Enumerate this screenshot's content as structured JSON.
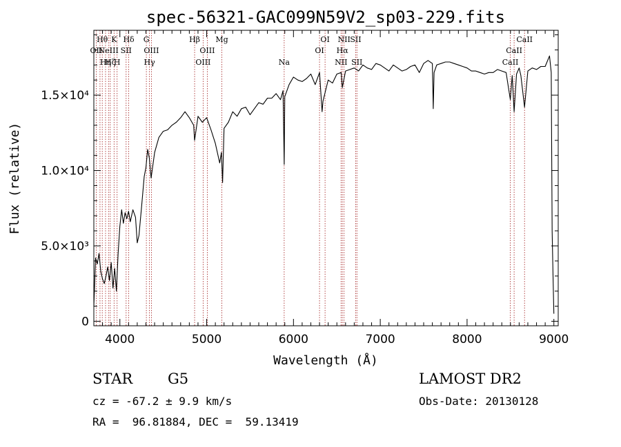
{
  "chart_data": {
    "type": "line",
    "title": "spec-56321-GAC099N59V2_sp03-229.fits",
    "xlabel": "Wavelength (Å)",
    "ylabel": "Flux (relative)",
    "xlim": [
      3700,
      9050
    ],
    "ylim": [
      -300,
      19300
    ],
    "x_ticks": [
      {
        "value": 4000,
        "label": "4000"
      },
      {
        "value": 5000,
        "label": "5000"
      },
      {
        "value": 6000,
        "label": "6000"
      },
      {
        "value": 7000,
        "label": "7000"
      },
      {
        "value": 8000,
        "label": "8000"
      },
      {
        "value": 9000,
        "label": "9000"
      }
    ],
    "y_ticks": [
      {
        "value": 0,
        "label": "0"
      },
      {
        "value": 5000,
        "label": "5.0×10³"
      },
      {
        "value": 10000,
        "label": "1.0×10⁴"
      },
      {
        "value": 15000,
        "label": "1.5×10⁴"
      }
    ],
    "series": [
      {
        "color": "#000000",
        "x": [
          3700,
          3720,
          3740,
          3760,
          3780,
          3800,
          3820,
          3840,
          3860,
          3880,
          3900,
          3920,
          3940,
          3960,
          3980,
          4000,
          4020,
          4040,
          4060,
          4080,
          4100,
          4120,
          4150,
          4180,
          4200,
          4220,
          4250,
          4280,
          4300,
          4320,
          4340,
          4360,
          4400,
          4450,
          4500,
          4550,
          4600,
          4650,
          4700,
          4750,
          4800,
          4850,
          4861,
          4900,
          4950,
          5000,
          5050,
          5100,
          5150,
          5170,
          5183,
          5200,
          5250,
          5300,
          5350,
          5400,
          5450,
          5500,
          5550,
          5600,
          5650,
          5700,
          5750,
          5800,
          5850,
          5880,
          5893,
          5900,
          5950,
          6000,
          6050,
          6100,
          6150,
          6200,
          6250,
          6300,
          6330,
          6340,
          6400,
          6450,
          6500,
          6550,
          6563,
          6600,
          6650,
          6700,
          6750,
          6800,
          6850,
          6900,
          6950,
          7000,
          7050,
          7100,
          7150,
          7200,
          7250,
          7300,
          7350,
          7400,
          7450,
          7500,
          7550,
          7600,
          7610,
          7620,
          7650,
          7700,
          7750,
          7800,
          7850,
          7900,
          7950,
          8000,
          8050,
          8100,
          8150,
          8200,
          8250,
          8300,
          8350,
          8400,
          8450,
          8498,
          8520,
          8542,
          8570,
          8600,
          8620,
          8662,
          8700,
          8750,
          8800,
          8850,
          8900,
          8950,
          8970,
          8980,
          8990,
          9000
        ],
        "y": [
          1000,
          4200,
          3800,
          4500,
          3300,
          2800,
          2500,
          3000,
          3600,
          2700,
          3900,
          2200,
          3500,
          2000,
          4500,
          6300,
          7400,
          6500,
          7200,
          6800,
          7300,
          6600,
          7400,
          6900,
          5200,
          5700,
          7600,
          9600,
          10200,
          11400,
          10800,
          9500,
          11200,
          12200,
          12600,
          12700,
          13000,
          13200,
          13500,
          13900,
          13500,
          13000,
          12000,
          13600,
          13200,
          13500,
          12700,
          11800,
          10500,
          11200,
          9200,
          12800,
          13200,
          13900,
          13600,
          14100,
          14200,
          13700,
          14100,
          14500,
          14400,
          14800,
          14800,
          15100,
          14700,
          15300,
          10400,
          14900,
          15700,
          16200,
          16000,
          15900,
          16100,
          16400,
          15700,
          16500,
          13900,
          14600,
          16000,
          15800,
          16400,
          16500,
          15500,
          16600,
          16700,
          16800,
          16600,
          17000,
          16800,
          16700,
          17100,
          17000,
          16800,
          16600,
          17000,
          16800,
          16600,
          16700,
          16900,
          17000,
          16500,
          17100,
          17300,
          17100,
          14100,
          16500,
          17000,
          17100,
          17200,
          17200,
          17100,
          17000,
          16900,
          16800,
          16600,
          16600,
          16500,
          16400,
          16500,
          16500,
          16700,
          16600,
          16500,
          14700,
          16300,
          13900,
          16400,
          16800,
          16300,
          14200,
          16600,
          16800,
          16700,
          16900,
          16900,
          17600,
          16500,
          6000,
          3000,
          500
        ]
      }
    ],
    "spectral_lines": [
      {
        "x": 3727,
        "label": "OII",
        "row": 2
      },
      {
        "x": 3771,
        "label": "",
        "row": 1
      },
      {
        "x": 3797,
        "label": "Hθ",
        "row": 1
      },
      {
        "x": 3835,
        "label": "Hη",
        "row": 3
      },
      {
        "x": 3869,
        "label": "NeIII",
        "row": 2
      },
      {
        "x": 3889,
        "label": "Hζ",
        "row": 3
      },
      {
        "x": 3933,
        "label": "K",
        "row": 1
      },
      {
        "x": 3968,
        "label": "H",
        "row": 3
      },
      {
        "x": 4072,
        "label": "SII",
        "row": 2
      },
      {
        "x": 4102,
        "label": "Hδ",
        "row": 1
      },
      {
        "x": 4305,
        "label": "G",
        "row": 1
      },
      {
        "x": 4341,
        "label": "Hγ",
        "row": 3
      },
      {
        "x": 4363,
        "label": "OIII",
        "row": 2
      },
      {
        "x": 4861,
        "label": "Hβ",
        "row": 1
      },
      {
        "x": 4959,
        "label": "OIII",
        "row": 3
      },
      {
        "x": 5007,
        "label": "OIII",
        "row": 2
      },
      {
        "x": 5175,
        "label": "Mg",
        "row": 1
      },
      {
        "x": 5893,
        "label": "Na",
        "row": 3
      },
      {
        "x": 6300,
        "label": "OI",
        "row": 2
      },
      {
        "x": 6364,
        "label": "OI",
        "row": 1
      },
      {
        "x": 6548,
        "label": "NII",
        "row": 3
      },
      {
        "x": 6563,
        "label": "Hα",
        "row": 2
      },
      {
        "x": 6583,
        "label": "NII",
        "row": 1
      },
      {
        "x": 6717,
        "label": "SII",
        "row": 1
      },
      {
        "x": 6731,
        "label": "SII",
        "row": 3
      },
      {
        "x": 8498,
        "label": "CaII",
        "row": 3
      },
      {
        "x": 8542,
        "label": "CaII",
        "row": 2
      },
      {
        "x": 8662,
        "label": "CaII",
        "row": 1
      }
    ],
    "grid": false,
    "legend": "none"
  },
  "info": {
    "object_class": "STAR",
    "subclass": "G5",
    "survey": "LAMOST DR2",
    "cz": "cz = -67.2 ± 9.9 km/s",
    "obs_date": "Obs-Date: 20130128",
    "coords": "RA =  96.81884, DEC =  59.13419"
  },
  "colors": {
    "spectrum": "#000000",
    "line_markers": "#a01818",
    "background": "#ffffff"
  }
}
